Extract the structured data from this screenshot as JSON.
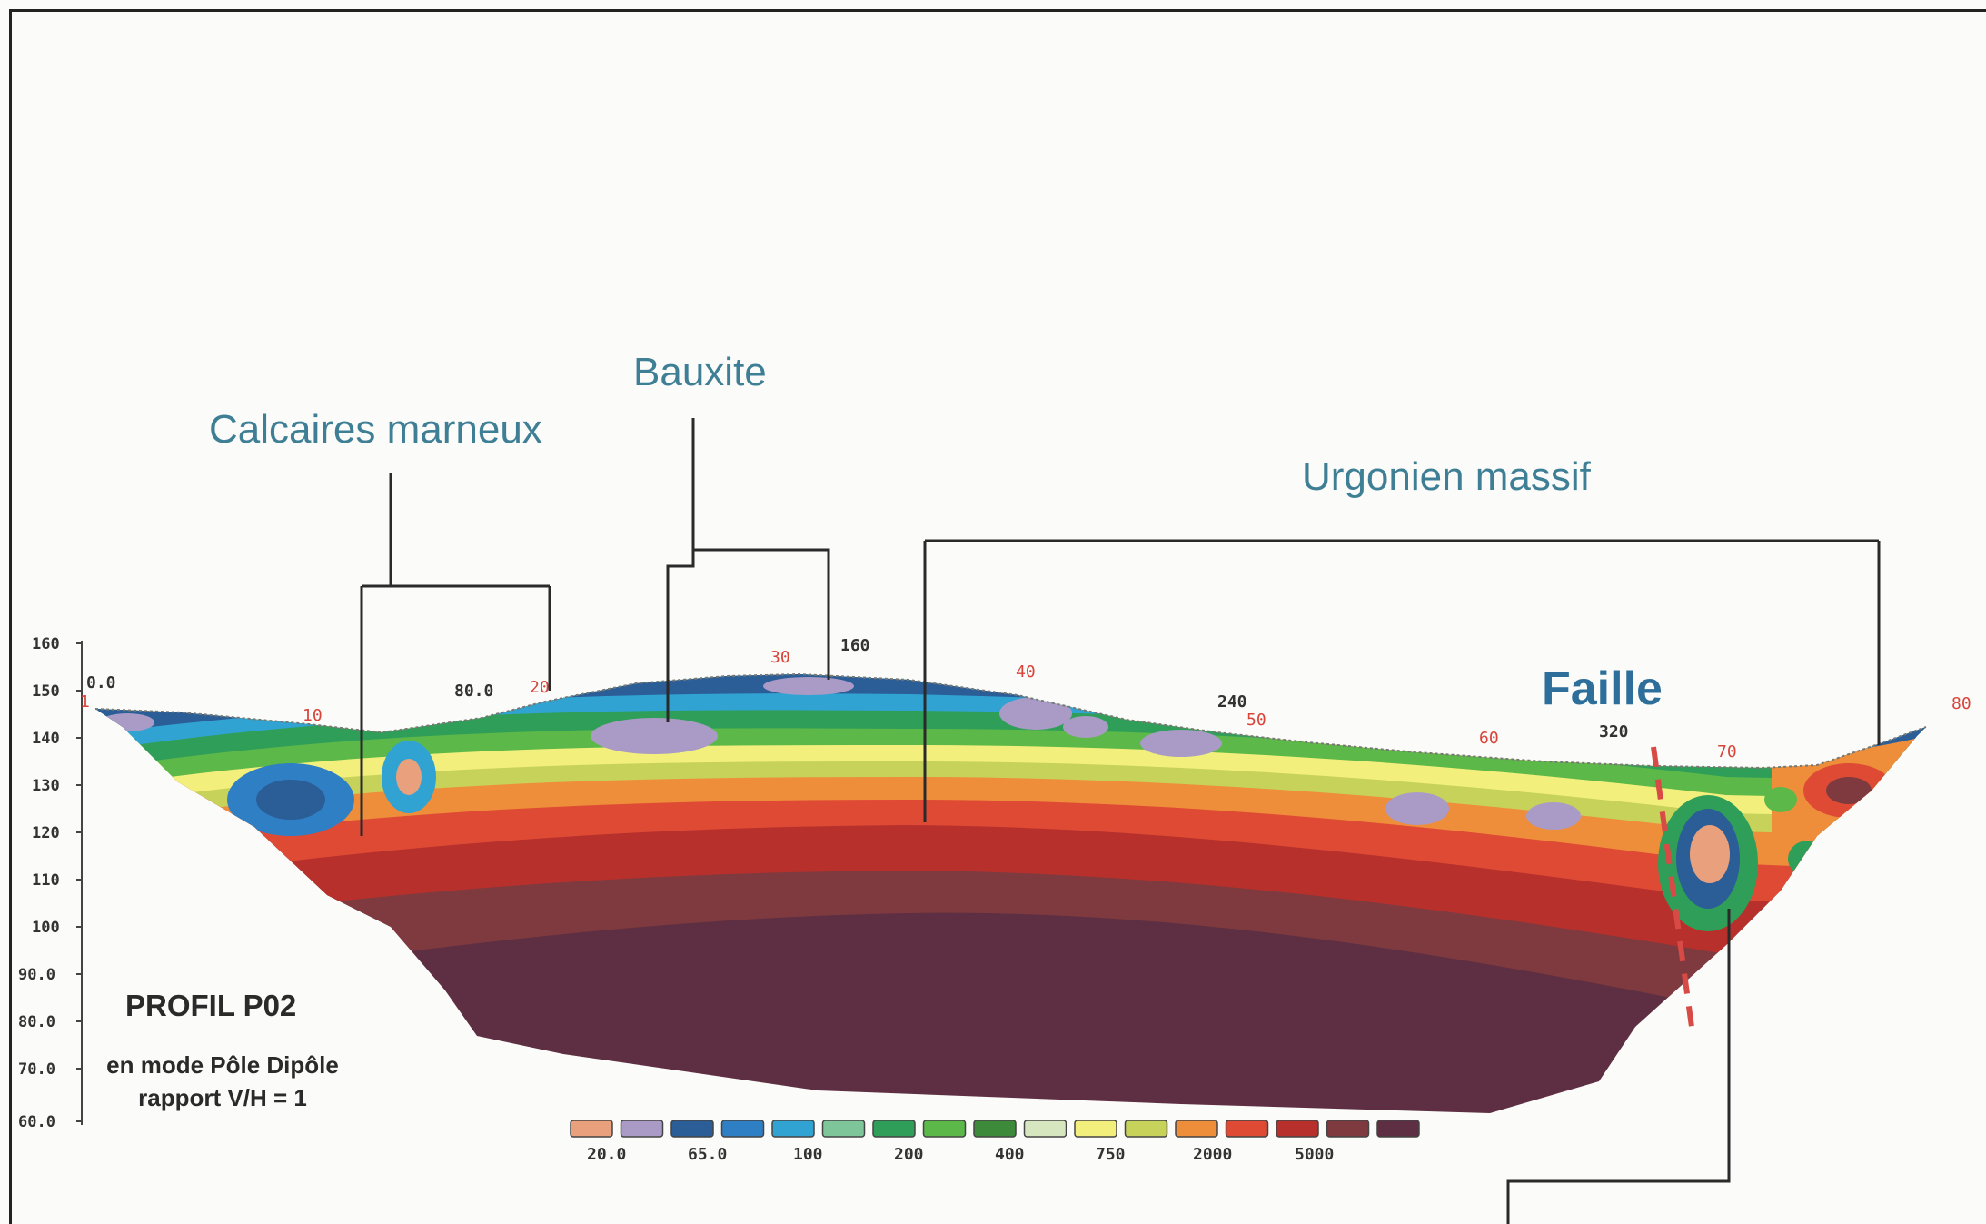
{
  "annotations": {
    "calcaires": "Calcaires marneux",
    "bauxite": "Bauxite",
    "urgonien": "Urgonien massif",
    "faille": "Faille"
  },
  "profile": {
    "title": "PROFIL P02",
    "mode": "en mode Pôle Dipôle",
    "ratio": "rapport V/H = 1"
  },
  "y_axis": {
    "ticks": [
      "160",
      "150",
      "140",
      "130",
      "120",
      "110",
      "100",
      "90.0",
      "80.0",
      "70.0",
      "60.0"
    ]
  },
  "distance_labels": [
    "0.0",
    "80.0",
    "160",
    "240",
    "320"
  ],
  "electrode_labels": [
    "1",
    "10",
    "20",
    "30",
    "40",
    "50",
    "60",
    "70",
    "80"
  ],
  "legend": {
    "colors": [
      "#e9a07c",
      "#a99bc6",
      "#2b5d97",
      "#2f7fc4",
      "#31a3d2",
      "#7fc59a",
      "#2f9e58",
      "#5cb848",
      "#3d8a3a",
      "#d6e7c0",
      "#f3ef7c",
      "#c7d25a",
      "#ee8e3a",
      "#df4a35",
      "#b8302c",
      "#7e3a3e",
      "#5e2f42"
    ],
    "labels": [
      "20.0",
      "65.0",
      "100",
      "200",
      "400",
      "750",
      "2000",
      "5000"
    ]
  }
}
